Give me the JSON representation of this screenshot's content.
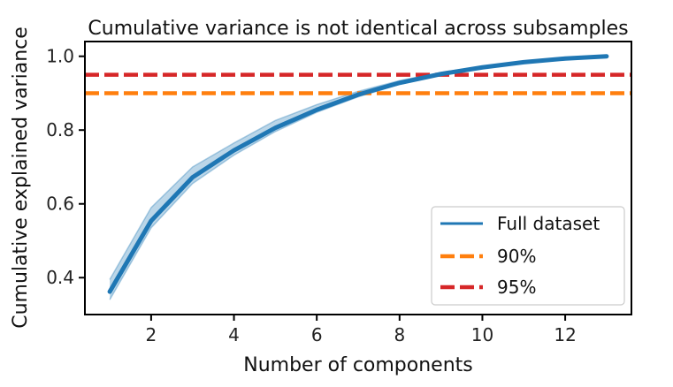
{
  "chart_data": {
    "type": "line",
    "title": "Cumulative variance is not identical across subsamples",
    "xlabel": "Number of components",
    "ylabel": "Cumulative explained variance",
    "xlim": [
      0.4,
      13.6
    ],
    "ylim": [
      0.3,
      1.04
    ],
    "xticks": [
      2,
      4,
      6,
      8,
      10,
      12
    ],
    "yticks": [
      0.4,
      0.6,
      0.8,
      1.0
    ],
    "x": [
      1,
      2,
      3,
      4,
      5,
      6,
      7,
      8,
      9,
      10,
      11,
      12,
      13
    ],
    "series": [
      {
        "name": "Full dataset",
        "color": "#1f77b4",
        "values": [
          0.362,
          0.554,
          0.672,
          0.745,
          0.806,
          0.855,
          0.896,
          0.928,
          0.952,
          0.97,
          0.984,
          0.994,
          1.0
        ]
      }
    ],
    "subsample_band": {
      "color": "#1f77b4",
      "lower": [
        0.34,
        0.535,
        0.655,
        0.732,
        0.796,
        0.848,
        0.89,
        0.924,
        0.949,
        0.968,
        0.983,
        0.993,
        1.0
      ],
      "upper": [
        0.395,
        0.59,
        0.7,
        0.765,
        0.826,
        0.869,
        0.905,
        0.934,
        0.956,
        0.973,
        0.986,
        0.995,
        1.0
      ]
    },
    "thresholds": [
      {
        "name": "90%",
        "value": 0.9,
        "color": "#ff7f0e",
        "style": "dashed"
      },
      {
        "name": "95%",
        "value": 0.95,
        "color": "#d62728",
        "style": "dashed"
      }
    ],
    "legend": {
      "placement": "lower-right",
      "entries": [
        "Full dataset",
        "90%",
        "95%"
      ]
    },
    "grid": false
  }
}
